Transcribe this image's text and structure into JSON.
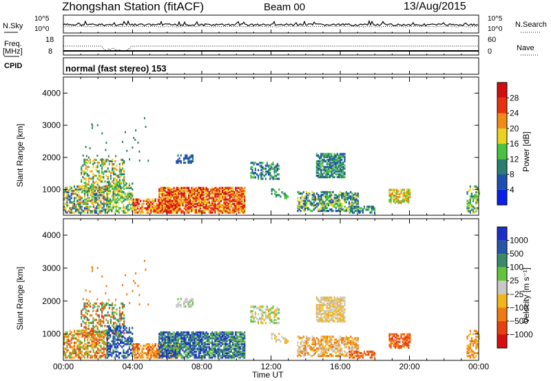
{
  "header": {
    "station": "Zhongshan Station (fitACF)",
    "beam": "Beam 00",
    "date": "13/Aug/2015"
  },
  "top_panel": {
    "left_label_1": "N.Sky",
    "left_label_2": "Freq.",
    "left_label_2b": "[MHz]",
    "left_label_3": "CPID",
    "right_label_1": "N.Search",
    "right_label_2": "Nave",
    "nsky_ticks": [
      "10^5",
      "10^0"
    ],
    "nsearch_ticks": [
      "10^5",
      "10^0"
    ],
    "freq_ticks": [
      "18",
      "8"
    ],
    "nave_ticks": [
      "60",
      "0"
    ],
    "cpid_text": "normal (fast stereo) 153"
  },
  "chart_data": [
    {
      "type": "heatmap",
      "name": "power",
      "ylabel": "Slant Range [km]",
      "xlabel": "",
      "ylim": [
        200,
        4500
      ],
      "yticks": [
        "1000",
        "2000",
        "3000",
        "4000"
      ],
      "colorbar_label": "Power [dB]",
      "colorbar_ticks": [
        "4",
        "8",
        "12",
        "16",
        "20",
        "24",
        "28"
      ],
      "colorbar_colors": [
        "#0a1fe8",
        "#1e4fb0",
        "#2b7d6f",
        "#49c23d",
        "#e9d31c",
        "#f28a14",
        "#e8300f",
        "#d20f0f"
      ]
    },
    {
      "type": "heatmap",
      "name": "velocity",
      "ylabel": "Slant Range [km]",
      "xlabel": "Time UT",
      "ylim": [
        200,
        4500
      ],
      "yticks": [
        "1000",
        "2000",
        "3000",
        "4000"
      ],
      "xticks": [
        "00:00",
        "04:00",
        "08:00",
        "12:00",
        "16:00",
        "20:00",
        "00:00"
      ],
      "colorbar_label": "Velocity [m s⁻¹]",
      "colorbar_ticks": [
        "1000",
        "500",
        "100",
        "25",
        "−25",
        "−100",
        "−500",
        "−1000"
      ],
      "colorbar_colors": [
        "#1a2fc8",
        "#2955a8",
        "#3a8a6a",
        "#63c43a",
        "#c8c8c8",
        "#f2b51a",
        "#f07a10",
        "#e8400f",
        "#d80f0f"
      ]
    }
  ]
}
